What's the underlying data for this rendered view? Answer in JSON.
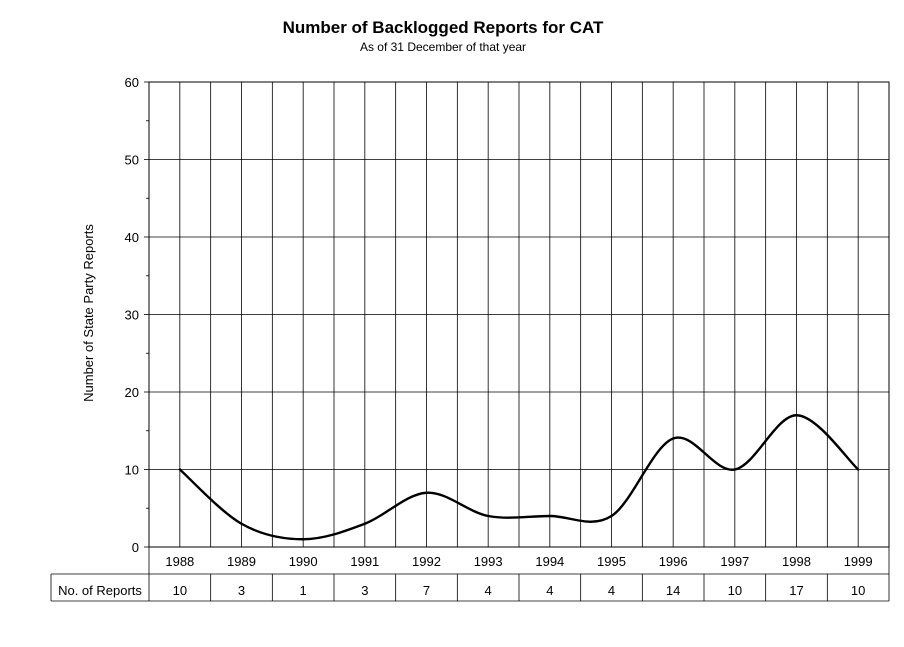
{
  "chart_data": {
    "type": "line",
    "title": "Number of Backlogged Reports for CAT",
    "subtitle": "As of 31 December of that year",
    "ylabel": "Number of State Party Reports",
    "xlabel": "",
    "ylim": [
      0,
      60
    ],
    "yticks": [
      "0",
      "10",
      "20",
      "30",
      "40",
      "50",
      "60"
    ],
    "grid": true,
    "smooth": true,
    "line_color": "#000000",
    "categories": [
      "1988",
      "1989",
      "1990",
      "1991",
      "1992",
      "1993",
      "1994",
      "1995",
      "1996",
      "1997",
      "1998",
      "1999"
    ],
    "series": [
      {
        "values": [
          10,
          3,
          1,
          3,
          7,
          4,
          4,
          4,
          14,
          10,
          17,
          10
        ]
      }
    ],
    "table": {
      "row_label": "No. of Reports",
      "values": [
        "10",
        "3",
        "1",
        "3",
        "7",
        "4",
        "4",
        "4",
        "14",
        "10",
        "17",
        "10"
      ]
    }
  }
}
